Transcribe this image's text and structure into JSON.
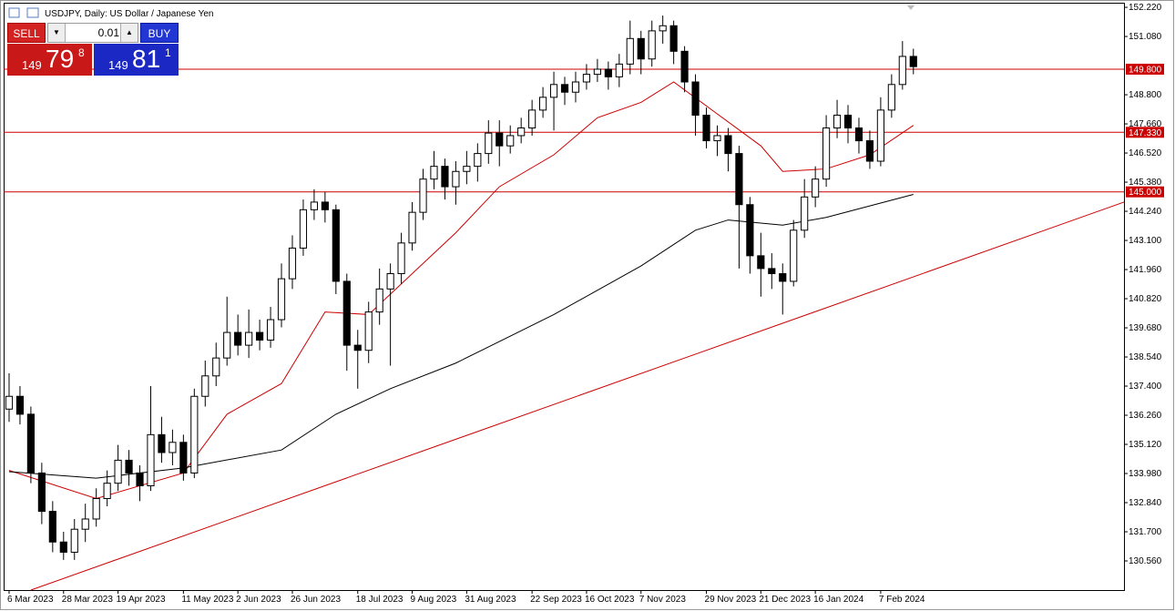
{
  "chart_data": {
    "type": "candlestick",
    "title": "USDJPY, Daily:  US Dollar / Japanese Yen",
    "categories": [
      "6 Mar 2023",
      null,
      null,
      null,
      null,
      "28 Mar 2023",
      null,
      null,
      null,
      null,
      "19 Apr 2023",
      null,
      null,
      null,
      null,
      null,
      "11 May 2023",
      null,
      null,
      null,
      null,
      "2 Jun 2023",
      null,
      null,
      null,
      null,
      "26 Jun 2023",
      null,
      null,
      null,
      null,
      null,
      "18 Jul 2023",
      null,
      null,
      null,
      null,
      "9 Aug 2023",
      null,
      null,
      null,
      null,
      "31 Aug 2023",
      null,
      null,
      null,
      null,
      null,
      "22 Sep 2023",
      null,
      null,
      null,
      null,
      "16 Oct 2023",
      null,
      null,
      null,
      null,
      "7 Nov 2023",
      null,
      null,
      null,
      null,
      null,
      "29 Nov 2023",
      null,
      null,
      null,
      null,
      "21 Dec 2023",
      null,
      null,
      null,
      null,
      "16 Jan 2024",
      null,
      null,
      null,
      null,
      null,
      "7 Feb 2024",
      null,
      null,
      null
    ],
    "open": [
      136.5,
      137.0,
      136.3,
      134.0,
      132.5,
      131.3,
      130.9,
      131.8,
      132.2,
      133.0,
      133.6,
      134.5,
      134.0,
      133.5,
      135.5,
      134.8,
      135.2,
      134.0,
      137.0,
      137.8,
      138.5,
      139.5,
      139.0,
      139.5,
      139.2,
      140.0,
      141.6,
      142.8,
      144.3,
      144.6,
      144.3,
      141.5,
      139.0,
      138.8,
      140.3,
      141.2,
      141.8,
      143.0,
      144.2,
      145.5,
      146.0,
      145.2,
      145.8,
      146.0,
      146.5,
      147.3,
      146.8,
      147.2,
      147.5,
      148.2,
      148.7,
      149.2,
      148.9,
      149.3,
      149.6,
      149.8,
      149.5,
      150.0,
      151.0,
      150.2,
      151.3,
      151.5,
      150.5,
      149.3,
      148.0,
      147.0,
      147.2,
      146.5,
      144.5,
      142.5,
      142.0,
      141.8,
      141.5,
      143.5,
      144.8,
      145.5,
      147.5,
      148.0,
      147.5,
      147.0,
      146.2,
      148.2,
      149.2,
      150.3
    ],
    "high": [
      137.9,
      137.4,
      136.6,
      134.4,
      132.9,
      131.7,
      132.2,
      132.8,
      133.4,
      134.1,
      135.1,
      134.9,
      134.3,
      137.4,
      136.2,
      135.7,
      135.5,
      137.3,
      138.4,
      139.1,
      140.9,
      140.2,
      140.4,
      140.0,
      140.5,
      142.2,
      143.3,
      144.7,
      145.1,
      145.0,
      144.5,
      141.8,
      139.6,
      140.7,
      142.0,
      142.2,
      143.4,
      144.6,
      145.9,
      146.6,
      146.3,
      146.2,
      146.6,
      146.9,
      147.8,
      147.8,
      147.6,
      147.9,
      148.6,
      149.1,
      149.7,
      149.5,
      149.7,
      150.0,
      150.2,
      150.1,
      150.4,
      151.7,
      151.3,
      151.7,
      151.9,
      151.7,
      150.7,
      149.6,
      148.3,
      147.6,
      147.5,
      146.8,
      144.8,
      143.4,
      142.6,
      142.2,
      143.9,
      145.5,
      146.0,
      148.0,
      148.6,
      148.4,
      147.9,
      147.4,
      148.7,
      149.6,
      150.9,
      150.6
    ],
    "low": [
      136.0,
      135.9,
      133.6,
      132.0,
      130.9,
      130.6,
      130.6,
      131.3,
      131.9,
      132.7,
      133.3,
      133.5,
      132.9,
      133.3,
      134.4,
      134.3,
      133.7,
      133.8,
      136.6,
      137.4,
      138.2,
      138.6,
      138.5,
      138.8,
      138.9,
      139.7,
      141.2,
      142.5,
      143.9,
      143.8,
      141.0,
      138.0,
      137.3,
      138.3,
      139.8,
      138.2,
      141.4,
      142.7,
      143.9,
      145.1,
      144.7,
      144.5,
      145.3,
      145.4,
      146.1,
      146.0,
      146.5,
      146.9,
      147.2,
      147.9,
      147.4,
      148.4,
      148.5,
      149.0,
      149.3,
      149.0,
      149.1,
      149.6,
      149.6,
      149.9,
      150.8,
      150.0,
      148.9,
      147.2,
      146.7,
      146.4,
      145.8,
      142.0,
      141.8,
      140.9,
      141.2,
      140.2,
      141.3,
      143.2,
      144.4,
      145.2,
      147.1,
      146.9,
      146.5,
      145.9,
      146.0,
      147.9,
      149.0,
      149.6
    ],
    "close": [
      137.0,
      136.3,
      134.0,
      132.5,
      131.3,
      130.9,
      131.8,
      132.2,
      133.0,
      133.6,
      134.5,
      134.0,
      133.5,
      135.5,
      134.8,
      135.2,
      134.0,
      137.0,
      137.8,
      138.5,
      139.5,
      139.0,
      139.5,
      139.2,
      140.0,
      141.6,
      142.8,
      144.3,
      144.6,
      144.3,
      141.5,
      139.0,
      138.8,
      140.3,
      141.2,
      141.8,
      143.0,
      144.2,
      145.5,
      146.0,
      145.2,
      145.8,
      146.0,
      146.5,
      147.3,
      146.8,
      147.2,
      147.5,
      148.2,
      148.7,
      149.2,
      148.9,
      149.3,
      149.6,
      149.8,
      149.5,
      150.0,
      151.0,
      150.2,
      151.3,
      151.5,
      150.5,
      149.3,
      148.0,
      147.0,
      147.2,
      146.5,
      144.5,
      142.5,
      142.0,
      141.8,
      141.5,
      143.5,
      144.8,
      145.5,
      147.5,
      148.0,
      147.5,
      147.0,
      146.2,
      148.2,
      149.2,
      150.3,
      149.9
    ],
    "up_color": "#ffffff",
    "down_color": "#000000",
    "xlim": [
      -0.5,
      102.33
    ],
    "ylim": [
      129.42,
      152.4
    ],
    "yticks": [
      {
        "value": 152.22,
        "label": "152.220"
      },
      {
        "value": 151.08,
        "label": "151.080"
      },
      {
        "value": 148.8,
        "label": "148.800"
      },
      {
        "value": 147.66,
        "label": "147.660"
      },
      {
        "value": 146.52,
        "label": "146.520"
      },
      {
        "value": 145.38,
        "label": "145.380"
      },
      {
        "value": 144.24,
        "label": "144.240"
      },
      {
        "value": 143.1,
        "label": "143.100"
      },
      {
        "value": 141.96,
        "label": "141.960"
      },
      {
        "value": 140.82,
        "label": "140.820"
      },
      {
        "value": 139.68,
        "label": "139.680"
      },
      {
        "value": 138.54,
        "label": "138.540"
      },
      {
        "value": 137.4,
        "label": "137.400"
      },
      {
        "value": 136.26,
        "label": "136.260"
      },
      {
        "value": 135.12,
        "label": "135.120"
      },
      {
        "value": 133.98,
        "label": "133.980"
      },
      {
        "value": 132.84,
        "label": "132.840"
      },
      {
        "value": 131.7,
        "label": "131.700"
      },
      {
        "value": 130.56,
        "label": "130.560"
      }
    ],
    "lines": [
      {
        "color": "#cc0000",
        "x": [
          0,
          8,
          16,
          20,
          25,
          29,
          33,
          37,
          41,
          45,
          50,
          54,
          58,
          61,
          65,
          69,
          71,
          75,
          79,
          83
        ],
        "values": [
          134.1,
          133.0,
          134.0,
          136.3,
          137.5,
          140.3,
          140.2,
          141.8,
          143.4,
          145.2,
          146.45,
          147.9,
          148.5,
          149.3,
          148.05,
          146.8,
          145.8,
          145.9,
          146.45,
          147.6
        ]
      },
      {
        "color": "#000000",
        "x": [
          0,
          8,
          16,
          25,
          30,
          35,
          41,
          50,
          58,
          63,
          66,
          71,
          75,
          83
        ],
        "values": [
          134.05,
          133.8,
          134.2,
          134.9,
          136.3,
          137.3,
          138.3,
          140.2,
          142.1,
          143.5,
          143.9,
          143.7,
          144.0,
          144.9
        ]
      }
    ],
    "trendline": {
      "color": "#cc0000",
      "x": [
        2,
        102.33
      ],
      "values": [
        129.42,
        144.6
      ]
    },
    "levels": [
      {
        "value": 149.8,
        "label": "149.800"
      },
      {
        "value": 147.33,
        "label": "147.330"
      },
      {
        "value": 145.0,
        "label": "145.000"
      }
    ],
    "level_color": "#cc0000"
  },
  "trade_panel": {
    "sell": "SELL",
    "buy": "BUY",
    "volume": "0.01",
    "bid": {
      "big": "149",
      "main": "79",
      "small": "8"
    },
    "ask": {
      "big": "149",
      "main": "81",
      "small": "1"
    }
  }
}
